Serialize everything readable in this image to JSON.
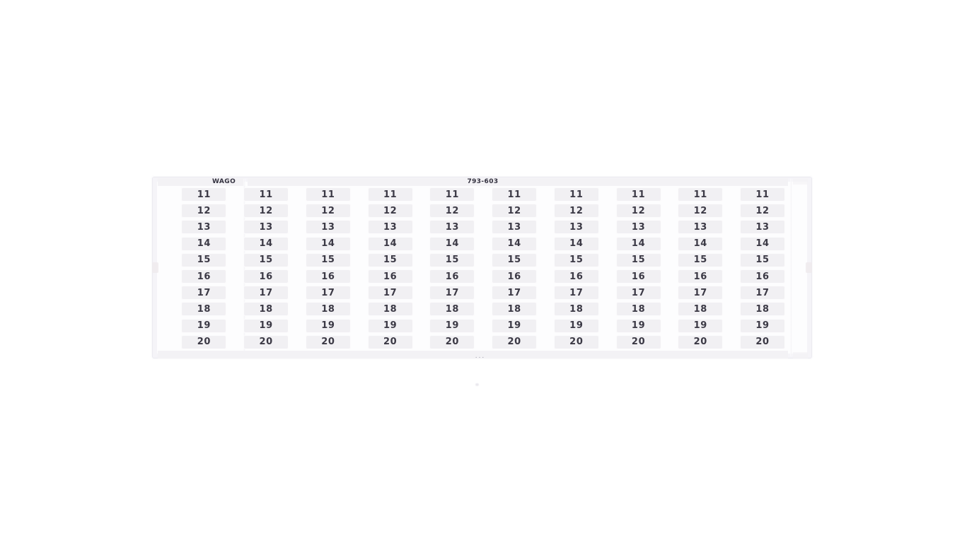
{
  "product": {
    "brand": "WAGO",
    "part_number": "793-603"
  },
  "marker_grid": {
    "row_values": [
      "11",
      "12",
      "13",
      "14",
      "15",
      "16",
      "17",
      "18",
      "19",
      "20"
    ],
    "columns": 10,
    "rows": 10,
    "rows_per_half": 5
  },
  "footer": {
    "ellipsis": "..."
  },
  "colors": {
    "page_bg": "#ffffff",
    "card_bg": "#fdfdfe",
    "card_border": "#ecebf1",
    "rail_bg": "#f3f2f5",
    "tab_bg": "#f1f0f3",
    "notch_bg": "#efeaec",
    "number_text": "#3b3945",
    "label_text": "#343240",
    "ellipsis_text": "#9a98a6"
  }
}
